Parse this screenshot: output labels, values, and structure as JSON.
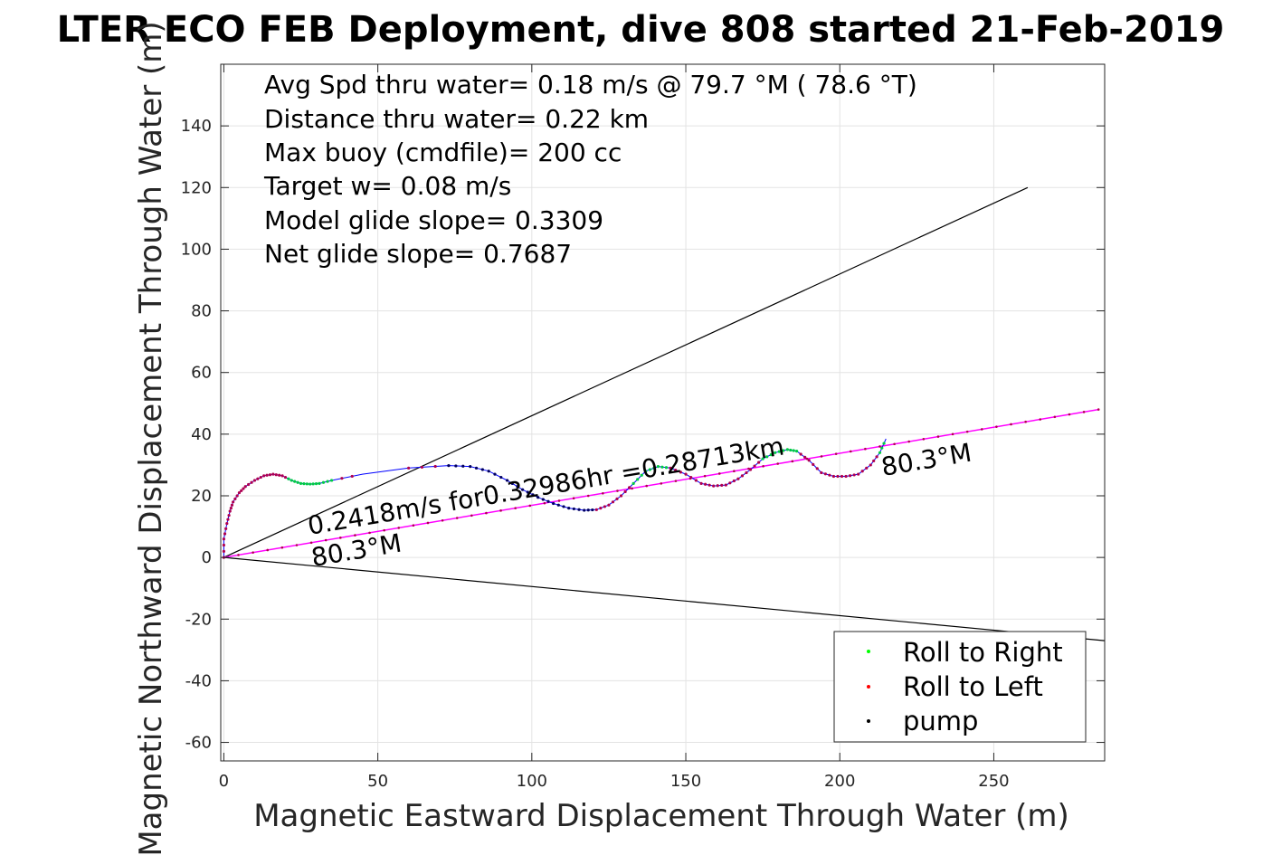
{
  "chart_data": {
    "type": "scatter",
    "title": "LTER ECO FEB Deployment, dive 808 started 21-Feb-2019",
    "xlabel": "Magnetic Eastward Displacement Through Water (m)",
    "ylabel": "Magnetic Northward Displacement Through Water (m)",
    "xlim": [
      -1,
      286
    ],
    "ylim": [
      -66,
      160
    ],
    "grid": true,
    "xticks": [
      0,
      50,
      100,
      150,
      200,
      250
    ],
    "yticks": [
      -60,
      -40,
      -20,
      0,
      20,
      40,
      60,
      80,
      100,
      120,
      140
    ],
    "info_lines": [
      "Avg Spd thru water=  0.18 m/s @  79.7 °M ( 78.6 °T)",
      "Distance thru water=  0.22 km",
      "Max buoy (cmdfile)= 200 cc",
      "Target w= 0.08 m/s",
      "Model glide slope= 0.3309",
      "Net glide slope= 0.7687"
    ],
    "annotations": {
      "speed_line": "0.2418m/s for0.32986hr =0.28713km",
      "heading_start": "80.3°M",
      "heading_end": "80.3°M"
    },
    "legend": {
      "placement": "bottom-right",
      "entries": [
        {
          "label": "Roll to Right",
          "color": "#00ff00"
        },
        {
          "label": "Roll to Left",
          "color": "#ff0000"
        },
        {
          "label": "pump",
          "color": "#000000"
        }
      ]
    },
    "colors": {
      "track": "#0000ff",
      "heading_line": "#ff00ff",
      "cone": "#000000",
      "roll_left_dots": "#b00050",
      "roll_right_dots": "#00cc44",
      "pump_dots": "#000060"
    },
    "series": [
      {
        "name": "Track",
        "points": [
          [
            0,
            0
          ],
          [
            0,
            6
          ],
          [
            1,
            11
          ],
          [
            2,
            15
          ],
          [
            3,
            18
          ],
          [
            5,
            21
          ],
          [
            7,
            23
          ],
          [
            10,
            25
          ],
          [
            13,
            26.5
          ],
          [
            16,
            27
          ],
          [
            19,
            26.5
          ],
          [
            22,
            25
          ],
          [
            25,
            24
          ],
          [
            28,
            23.8
          ],
          [
            31,
            24
          ],
          [
            35,
            25
          ],
          [
            45,
            27
          ],
          [
            60,
            29
          ],
          [
            73,
            29.8
          ],
          [
            80,
            29.5
          ],
          [
            86,
            28
          ],
          [
            92,
            25
          ],
          [
            97,
            22
          ],
          [
            102,
            19.5
          ],
          [
            107,
            17.5
          ],
          [
            112,
            16
          ],
          [
            117,
            15.3
          ],
          [
            121,
            15.5
          ],
          [
            125,
            17
          ],
          [
            129,
            20
          ],
          [
            133,
            24
          ],
          [
            137,
            28
          ],
          [
            141,
            29.5
          ],
          [
            145,
            29
          ],
          [
            150,
            27
          ],
          [
            155,
            24
          ],
          [
            159,
            23.2
          ],
          [
            163,
            23.5
          ],
          [
            167,
            25.5
          ],
          [
            171,
            28.5
          ],
          [
            175,
            32
          ],
          [
            179,
            34
          ],
          [
            183,
            35
          ],
          [
            186,
            34.5
          ],
          [
            190,
            31.5
          ],
          [
            194,
            27.5
          ],
          [
            198,
            26.3
          ],
          [
            202,
            26.3
          ],
          [
            206,
            27
          ],
          [
            210,
            30
          ],
          [
            213,
            34
          ],
          [
            215,
            38.5
          ]
        ]
      },
      {
        "name": "Heading line",
        "points": [
          [
            0,
            0
          ],
          [
            284,
            48
          ]
        ]
      },
      {
        "name": "Cone upper",
        "points": [
          [
            0,
            0
          ],
          [
            261,
            120
          ]
        ]
      },
      {
        "name": "Cone lower",
        "points": [
          [
            0,
            0
          ],
          [
            286,
            -27
          ]
        ]
      }
    ]
  }
}
